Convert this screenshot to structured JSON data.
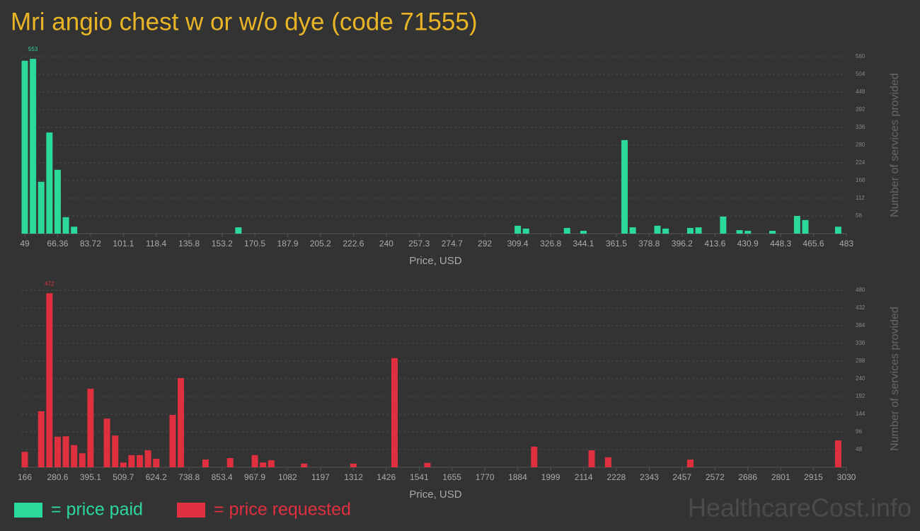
{
  "title": "Mri angio chest w or w/o dye (code 71555)",
  "watermark": "HealthcareCost.info",
  "chart_data": [
    {
      "type": "histogram",
      "x_label": "Price, USD",
      "y_label": "Number of services provided",
      "x": [
        49,
        53.34,
        57.68,
        62.02,
        66.36,
        70.7,
        75.04,
        161.84,
        309.4,
        313.74,
        335.44,
        344.12,
        365.82,
        370.16,
        383.18,
        387.52,
        400.54,
        404.88,
        417.9,
        426.58,
        430.92,
        443.94,
        456.96,
        461.3,
        478.66
      ],
      "series": [
        {
          "name": "= price paid",
          "color": "#2bd99b",
          "values": [
            547,
            553,
            164,
            320,
            202,
            52,
            22,
            20,
            25,
            16,
            18,
            9,
            296,
            20,
            25,
            16,
            18,
            20,
            54,
            11,
            9,
            9,
            56,
            43,
            22
          ]
        }
      ],
      "xlim": [
        49,
        483
      ],
      "xticks": [
        49,
        66.36,
        83.72,
        101.1,
        118.4,
        135.8,
        153.2,
        170.5,
        187.9,
        205.2,
        222.6,
        240,
        257.3,
        274.7,
        292,
        309.4,
        326.8,
        344.1,
        361.5,
        378.8,
        396.2,
        413.6,
        430.9,
        448.3,
        465.6,
        483
      ],
      "ylim": [
        0,
        560
      ],
      "yticks": [
        56,
        112,
        168,
        224,
        280,
        336,
        392,
        448,
        504,
        560
      ],
      "grid": true
    },
    {
      "type": "histogram",
      "x_label": "Price, USD",
      "y_label": "Number of services provided",
      "x": [
        166,
        223.28,
        251.92,
        280.56,
        309.2,
        337.84,
        366.48,
        395.12,
        452.4,
        481.04,
        509.68,
        538.32,
        566.96,
        595.6,
        624.24,
        681.52,
        710.16,
        796.08,
        882,
        967.92,
        996.56,
        1025.2,
        1139.76,
        1311.6,
        1454.8,
        1569.36,
        1941.68,
        2142.16,
        2199.44,
        2485.84,
        3001.36
      ],
      "series": [
        {
          "name": "= price requested",
          "color": "#e0303f",
          "values": [
            42,
            152,
            472,
            83,
            84,
            60,
            38,
            213,
            132,
            86,
            13,
            33,
            33,
            46,
            23,
            142,
            242,
            21,
            25,
            33,
            13,
            19,
            10,
            10,
            296,
            12,
            56,
            46,
            27,
            21,
            73
          ]
        }
      ],
      "xlim": [
        166,
        3030
      ],
      "xticks": [
        166,
        280.6,
        395.1,
        509.7,
        624.2,
        738.8,
        853.4,
        967.9,
        1082,
        1197,
        1312,
        1426,
        1541,
        1655,
        1770,
        1884,
        1999,
        2114,
        2228,
        2343,
        2457,
        2572,
        2686,
        2801,
        2915,
        3030
      ],
      "ylim": [
        0,
        480
      ],
      "yticks": [
        48,
        96,
        144,
        192,
        240,
        288,
        336,
        384,
        432,
        480
      ],
      "grid": true
    }
  ]
}
